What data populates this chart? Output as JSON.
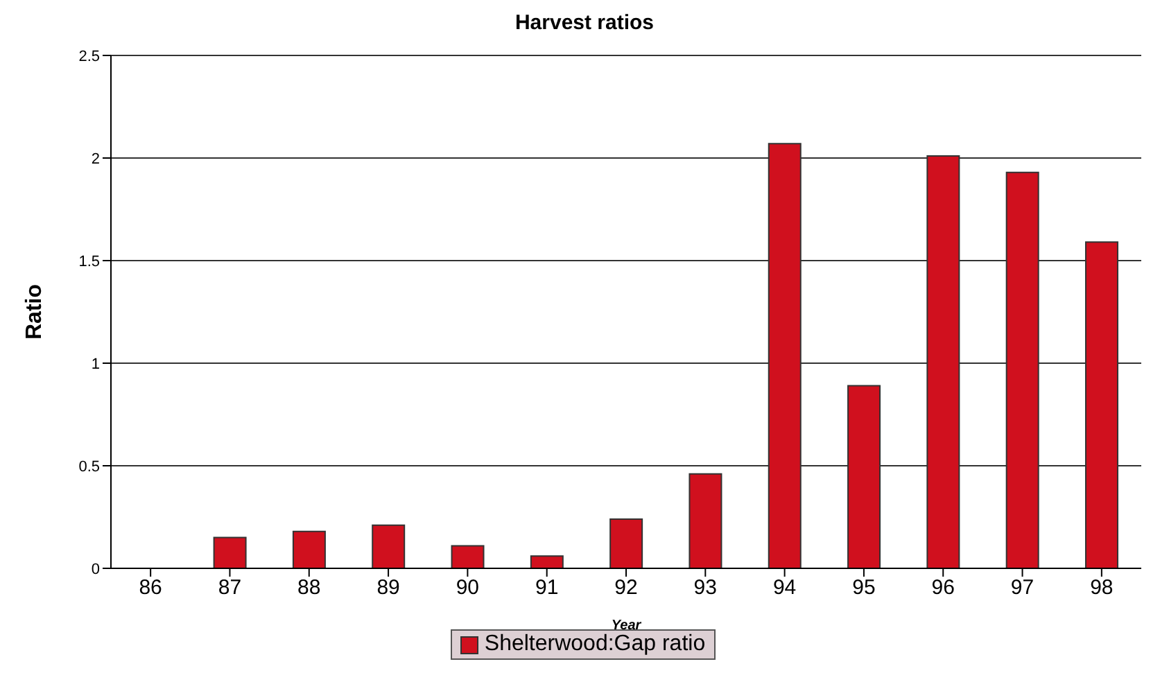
{
  "chart_data": {
    "type": "bar",
    "title": "Harvest ratios",
    "xlabel": "Year",
    "ylabel": "Ratio",
    "categories": [
      "86",
      "87",
      "88",
      "89",
      "90",
      "91",
      "92",
      "93",
      "94",
      "95",
      "96",
      "97",
      "98"
    ],
    "series": [
      {
        "name": "Shelterwood:Gap ratio",
        "color": "#d0101e",
        "values": [
          null,
          0.15,
          0.18,
          0.21,
          0.11,
          0.06,
          0.24,
          0.46,
          2.07,
          0.89,
          2.01,
          1.93,
          1.59
        ]
      }
    ],
    "ylim": [
      0,
      2.5
    ],
    "yticks": [
      0,
      0.5,
      1,
      1.5,
      2,
      2.5
    ],
    "grid": "y",
    "legend": "bottom"
  }
}
